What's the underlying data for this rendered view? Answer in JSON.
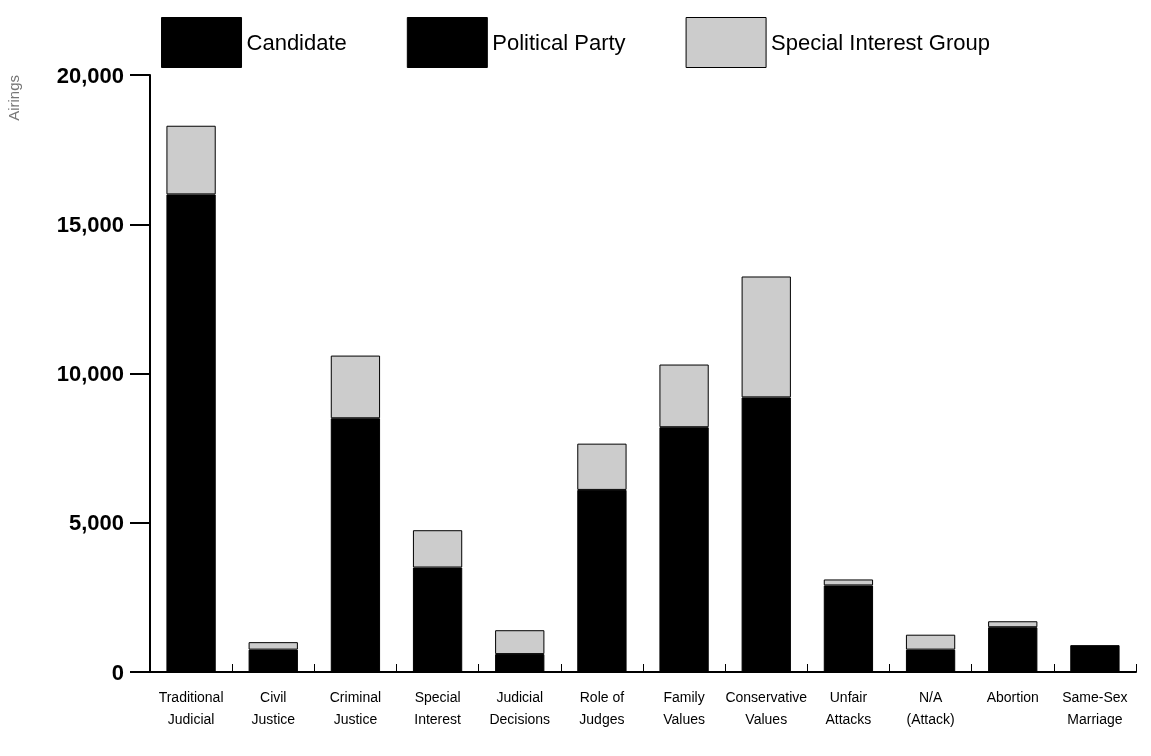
{
  "chart_data": {
    "type": "bar",
    "ylabel": "Airings",
    "stacked": true,
    "legend": "top",
    "grid": false,
    "categories": [
      "Traditional\nJudicial",
      "Civil\nJustice",
      "Criminal\nJustice",
      "Special\nInterest",
      "Judicial\nDecisions",
      "Role of\nJudges",
      "Family\nValues",
      "Conservative\nValues",
      "Unfair\nAttacks",
      "N/A\n(Attack)",
      "Abortion",
      "Same-Sex\nMarriage"
    ],
    "series": [
      {
        "name": "Candidate",
        "color": "#000000",
        "values": [
          16000,
          750,
          8500,
          3500,
          600,
          6100,
          8200,
          9200,
          2900,
          750,
          1500,
          900
        ]
      },
      {
        "name": "Political Party",
        "color": "#000000",
        "values": [
          null,
          null,
          null,
          null,
          null,
          null,
          null,
          null,
          null,
          null,
          null,
          null
        ]
      },
      {
        "name": "Special Interest Group",
        "color": "#cccccc",
        "values": [
          2300,
          250,
          2100,
          1250,
          800,
          1550,
          2100,
          4050,
          200,
          500,
          200,
          null
        ]
      }
    ],
    "ylim": [
      0,
      20000
    ],
    "yticks": [
      {
        "value": 0,
        "label": "0"
      },
      {
        "value": 5000,
        "label": "5,000"
      },
      {
        "value": 10000,
        "label": "10,000"
      },
      {
        "value": 15000,
        "label": "15,000"
      },
      {
        "value": 20000,
        "label": "20,000"
      }
    ]
  }
}
